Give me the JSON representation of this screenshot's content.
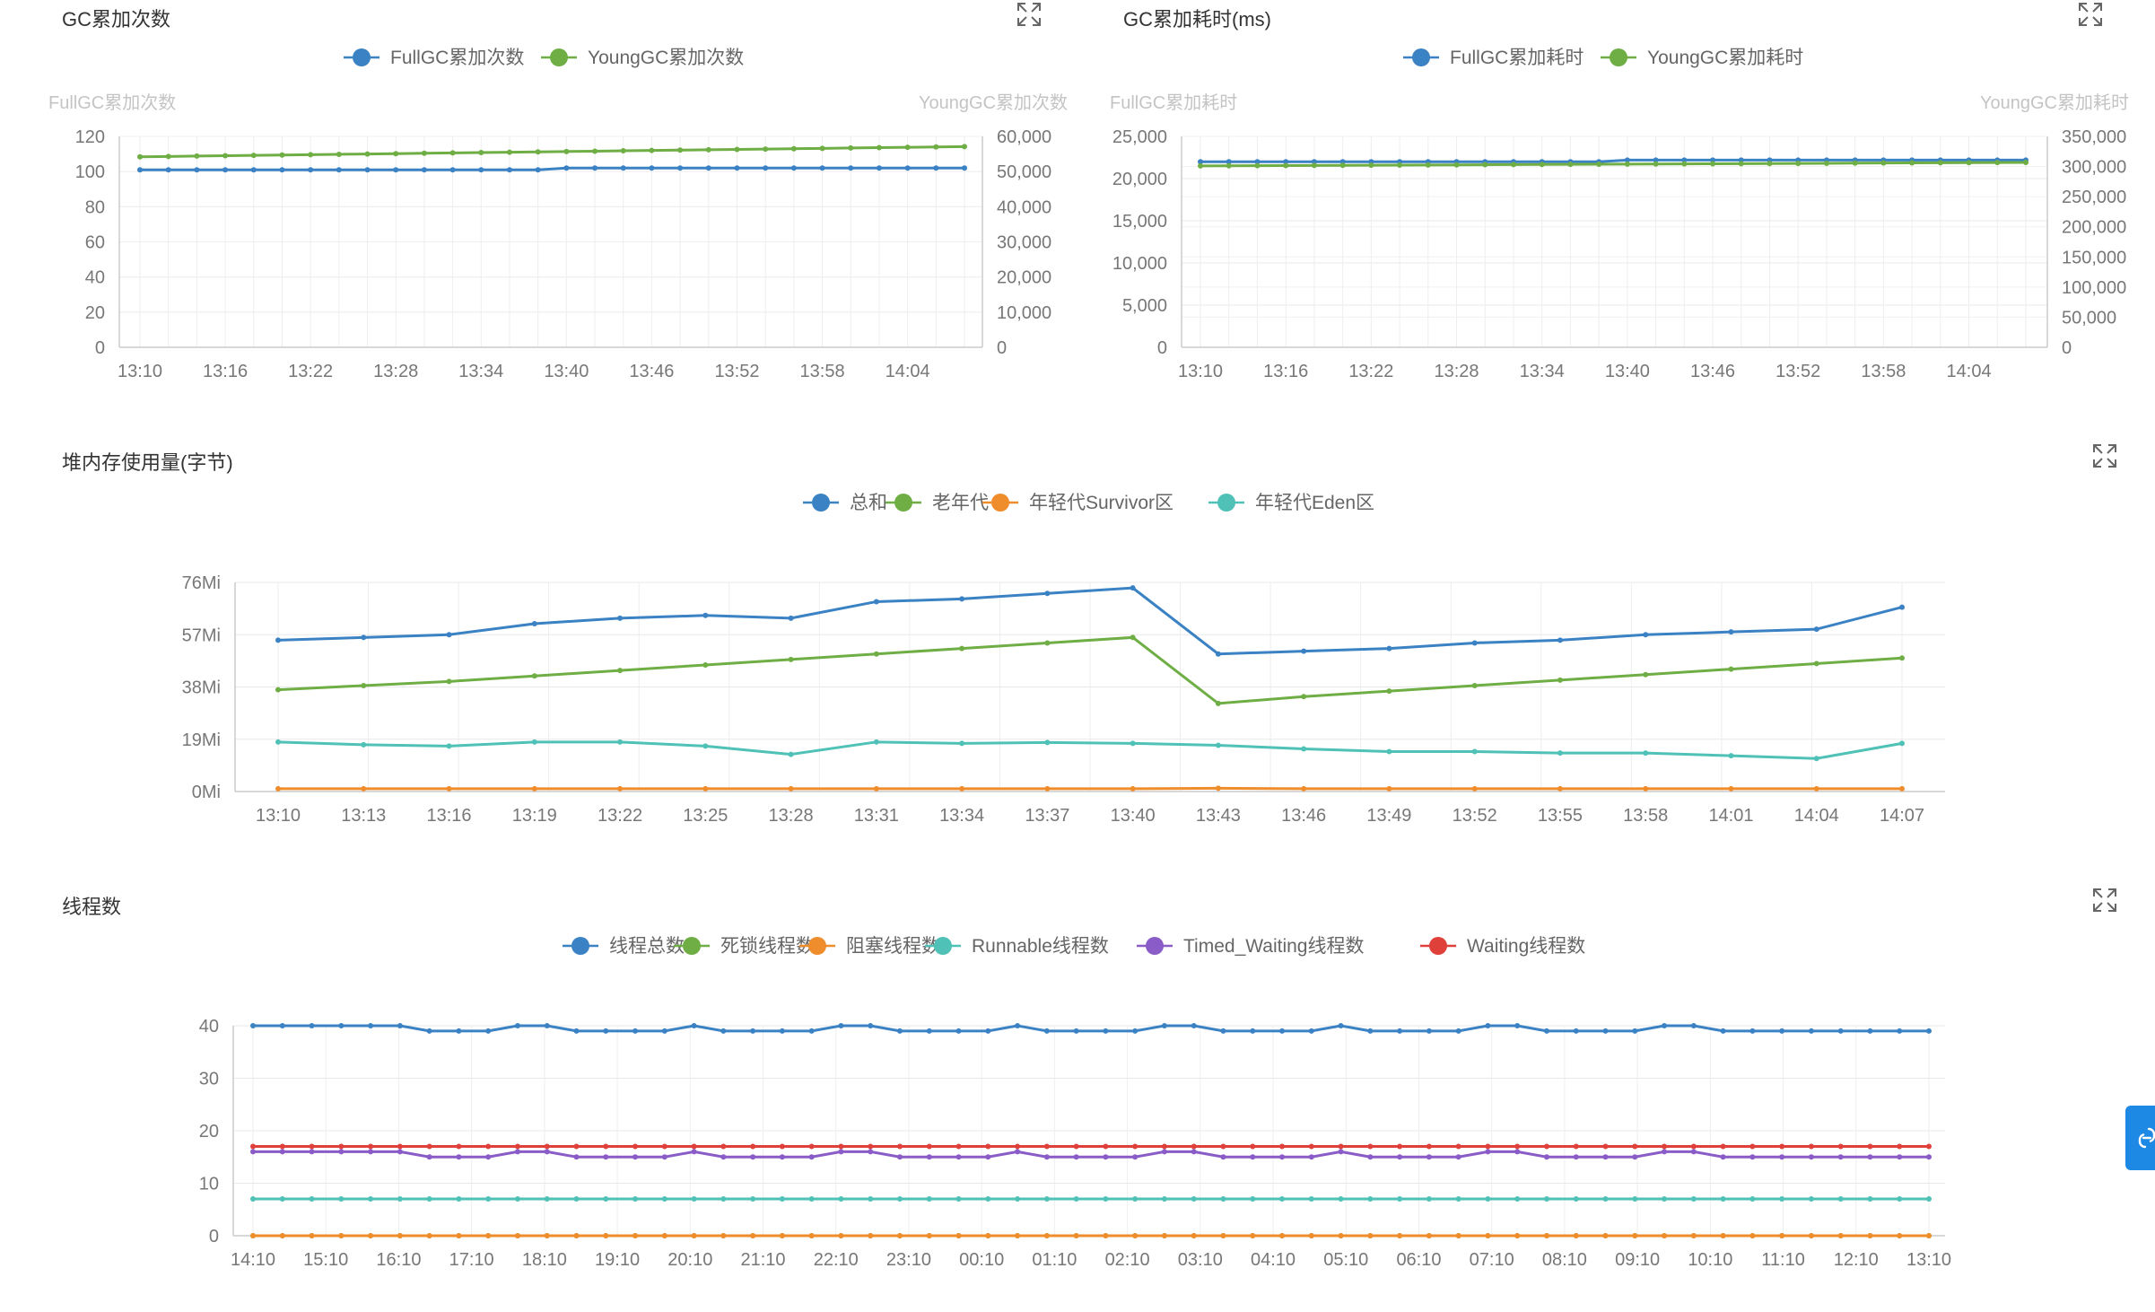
{
  "panels": {
    "gc_count": {
      "title": "GC累加次数"
    },
    "gc_time": {
      "title": "GC累加耗时(ms)"
    },
    "heap": {
      "title": "堆内存使用量(字节)"
    },
    "threads": {
      "title": "线程数"
    }
  },
  "icons": {
    "expand": "expand-icon",
    "side_tab": "link-icon"
  },
  "chart_data": [
    {
      "id": "gc_count",
      "type": "line",
      "title": "GC累加次数",
      "y_left_label": "FullGC累加次数",
      "y_right_label": "YoungGC累加次数",
      "y_left_range": [
        0,
        120
      ],
      "y_left_ticks": [
        "0",
        "20",
        "40",
        "60",
        "80",
        "100",
        "120"
      ],
      "y_right_range": [
        0,
        60000
      ],
      "y_right_ticks": [
        "0",
        "10,000",
        "20,000",
        "30,000",
        "40,000",
        "50,000",
        "60,000"
      ],
      "x_tick_labels": [
        "13:10",
        "13:16",
        "13:22",
        "13:28",
        "13:34",
        "13:40",
        "13:46",
        "13:52",
        "13:58",
        "14:04"
      ],
      "grid": true,
      "legend_position": "top-center",
      "series": [
        {
          "name": "FullGC累加次数",
          "axis": "left",
          "color": "#3b82c4",
          "values": [
            101,
            101,
            101,
            101,
            101,
            101,
            101,
            101,
            101,
            101,
            101,
            101,
            101,
            101,
            101,
            102,
            102,
            102,
            102,
            102,
            102,
            102,
            102,
            102,
            102,
            102,
            102,
            102,
            102,
            102
          ]
        },
        {
          "name": "YoungGC累加次数",
          "axis": "right",
          "color": "#6fae45",
          "values": [
            54200,
            54300,
            54400,
            54500,
            54600,
            54700,
            54800,
            54900,
            55000,
            55100,
            55200,
            55300,
            55400,
            55500,
            55600,
            55700,
            55800,
            55900,
            56000,
            56100,
            56200,
            56300,
            56400,
            56500,
            56600,
            56700,
            56800,
            56900,
            57000,
            57100
          ]
        }
      ]
    },
    {
      "id": "gc_time",
      "type": "line",
      "title": "GC累加耗时(ms)",
      "y_left_label": "FullGC累加耗时",
      "y_right_label": "YoungGC累加耗时",
      "y_left_range": [
        0,
        25000
      ],
      "y_left_ticks": [
        "0",
        "5,000",
        "10,000",
        "15,000",
        "20,000",
        "25,000"
      ],
      "y_right_range": [
        0,
        350000
      ],
      "y_right_ticks": [
        "0",
        "50,000",
        "100,000",
        "150,000",
        "200,000",
        "250,000",
        "300,000",
        "350,000"
      ],
      "x_tick_labels": [
        "13:10",
        "13:16",
        "13:22",
        "13:28",
        "13:34",
        "13:40",
        "13:46",
        "13:52",
        "13:58",
        "14:04"
      ],
      "grid": true,
      "legend_position": "top-center",
      "series": [
        {
          "name": "FullGC累加耗时",
          "axis": "left",
          "color": "#3b82c4",
          "values": [
            22000,
            22000,
            22000,
            22000,
            22000,
            22000,
            22000,
            22000,
            22000,
            22000,
            22000,
            22000,
            22000,
            22000,
            22000,
            22200,
            22200,
            22200,
            22200,
            22200,
            22200,
            22200,
            22200,
            22200,
            22200,
            22200,
            22200,
            22200,
            22200,
            22200
          ]
        },
        {
          "name": "YoungGC累加耗时",
          "axis": "right",
          "color": "#6fae45",
          "values": [
            301000,
            301200,
            301400,
            301600,
            301800,
            302000,
            302200,
            302400,
            302600,
            302800,
            303000,
            303200,
            303400,
            303600,
            303800,
            304000,
            304200,
            304400,
            304600,
            304800,
            305000,
            305200,
            305400,
            305600,
            305800,
            306000,
            306200,
            306400,
            306600,
            306800
          ]
        }
      ]
    },
    {
      "id": "heap",
      "type": "line",
      "title": "堆内存使用量(字节)",
      "y_range": [
        0,
        76
      ],
      "y_ticks": [
        "0Mi",
        "19Mi",
        "38Mi",
        "57Mi",
        "76Mi"
      ],
      "y_unit": "Mi",
      "x_tick_labels": [
        "13:10",
        "13:13",
        "13:16",
        "13:19",
        "13:22",
        "13:25",
        "13:28",
        "13:31",
        "13:34",
        "13:37",
        "13:40",
        "13:43",
        "13:46",
        "13:49",
        "13:52",
        "13:55",
        "13:58",
        "14:01",
        "14:04",
        "14:07"
      ],
      "grid": true,
      "legend_position": "top-center",
      "series": [
        {
          "name": "总和",
          "color": "#3b82c4",
          "values": [
            55,
            56,
            57,
            61,
            63,
            64,
            63,
            69,
            70,
            72,
            74,
            50,
            51,
            52,
            54,
            55,
            57,
            58,
            59,
            67
          ]
        },
        {
          "name": "老年代",
          "color": "#6fae45",
          "values": [
            37,
            38.5,
            40,
            42,
            44,
            46,
            48,
            50,
            52,
            54,
            56,
            32,
            34.5,
            36.5,
            38.5,
            40.5,
            42.5,
            44.5,
            46.5,
            48.5
          ]
        },
        {
          "name": "年轻代Survivor区",
          "color": "#ef8c2b",
          "values": [
            1,
            1,
            1,
            1,
            1,
            1,
            1,
            1,
            1,
            1,
            1,
            1.2,
            1,
            1,
            1,
            1,
            1,
            1,
            1,
            1
          ]
        },
        {
          "name": "年轻代Eden区",
          "color": "#4fc1b6",
          "values": [
            18,
            17,
            16.5,
            18,
            18,
            16.5,
            13.5,
            18,
            17.5,
            17.8,
            17.5,
            16.8,
            15.5,
            14.5,
            14.5,
            14,
            14,
            13,
            12,
            17.5
          ]
        }
      ]
    },
    {
      "id": "threads",
      "type": "line",
      "title": "线程数",
      "y_range": [
        0,
        40
      ],
      "y_ticks": [
        "0",
        "10",
        "20",
        "30",
        "40"
      ],
      "x_tick_labels": [
        "14:10",
        "15:10",
        "16:10",
        "17:10",
        "18:10",
        "19:10",
        "20:10",
        "21:10",
        "22:10",
        "23:10",
        "00:10",
        "01:10",
        "02:10",
        "03:10",
        "04:10",
        "05:10",
        "06:10",
        "07:10",
        "08:10",
        "09:10",
        "10:10",
        "11:10",
        "12:10",
        "13:10"
      ],
      "grid": true,
      "legend_position": "top-center",
      "series": [
        {
          "name": "线程总数",
          "color": "#3b82c4",
          "values": [
            40,
            40,
            40,
            40,
            40,
            40,
            39,
            39,
            39,
            40,
            40,
            39,
            39,
            39,
            39,
            40,
            39,
            39,
            39,
            39,
            40,
            40,
            39,
            39,
            39,
            39,
            40,
            39,
            39,
            39,
            39,
            40,
            40,
            39,
            39,
            39,
            39,
            40,
            39,
            39,
            39,
            39,
            40,
            40,
            39,
            39,
            39,
            39,
            40,
            40,
            39,
            39,
            39,
            39,
            39,
            39,
            39,
            39
          ]
        },
        {
          "name": "死锁线程数",
          "color": "#6fae45",
          "values": [
            0,
            0,
            0,
            0,
            0,
            0,
            0,
            0,
            0,
            0,
            0,
            0,
            0,
            0,
            0,
            0,
            0,
            0,
            0,
            0,
            0,
            0,
            0,
            0,
            0,
            0,
            0,
            0,
            0,
            0,
            0,
            0,
            0,
            0,
            0,
            0,
            0,
            0,
            0,
            0,
            0,
            0,
            0,
            0,
            0,
            0,
            0,
            0,
            0,
            0,
            0,
            0,
            0,
            0,
            0,
            0,
            0,
            0
          ]
        },
        {
          "name": "阻塞线程数",
          "color": "#ef8c2b",
          "values": [
            0,
            0,
            0,
            0,
            0,
            0,
            0,
            0,
            0,
            0,
            0,
            0,
            0,
            0,
            0,
            0,
            0,
            0,
            0,
            0,
            0,
            0,
            0,
            0,
            0,
            0,
            0,
            0,
            0,
            0,
            0,
            0,
            0,
            0,
            0,
            0,
            0,
            0,
            0,
            0,
            0,
            0,
            0,
            0,
            0,
            0,
            0,
            0,
            0,
            0,
            0,
            0,
            0,
            0,
            0,
            0,
            0,
            0
          ]
        },
        {
          "name": "Runnable线程数",
          "color": "#4fc1b6",
          "values": [
            7,
            7,
            7,
            7,
            7,
            7,
            7,
            7,
            7,
            7,
            7,
            7,
            7,
            7,
            7,
            7,
            7,
            7,
            7,
            7,
            7,
            7,
            7,
            7,
            7,
            7,
            7,
            7,
            7,
            7,
            7,
            7,
            7,
            7,
            7,
            7,
            7,
            7,
            7,
            7,
            7,
            7,
            7,
            7,
            7,
            7,
            7,
            7,
            7,
            7,
            7,
            7,
            7,
            7,
            7,
            7,
            7,
            7
          ]
        },
        {
          "name": "Timed_Waiting线程数",
          "color": "#8a5cc7",
          "values": [
            16,
            16,
            16,
            16,
            16,
            16,
            15,
            15,
            15,
            16,
            16,
            15,
            15,
            15,
            15,
            16,
            15,
            15,
            15,
            15,
            16,
            16,
            15,
            15,
            15,
            15,
            16,
            15,
            15,
            15,
            15,
            16,
            16,
            15,
            15,
            15,
            15,
            16,
            15,
            15,
            15,
            15,
            16,
            16,
            15,
            15,
            15,
            15,
            16,
            16,
            15,
            15,
            15,
            15,
            15,
            15,
            15,
            15
          ]
        },
        {
          "name": "Waiting线程数",
          "color": "#e0403a",
          "values": [
            17,
            17,
            17,
            17,
            17,
            17,
            17,
            17,
            17,
            17,
            17,
            17,
            17,
            17,
            17,
            17,
            17,
            17,
            17,
            17,
            17,
            17,
            17,
            17,
            17,
            17,
            17,
            17,
            17,
            17,
            17,
            17,
            17,
            17,
            17,
            17,
            17,
            17,
            17,
            17,
            17,
            17,
            17,
            17,
            17,
            17,
            17,
            17,
            17,
            17,
            17,
            17,
            17,
            17,
            17,
            17,
            17,
            17
          ]
        }
      ]
    }
  ]
}
